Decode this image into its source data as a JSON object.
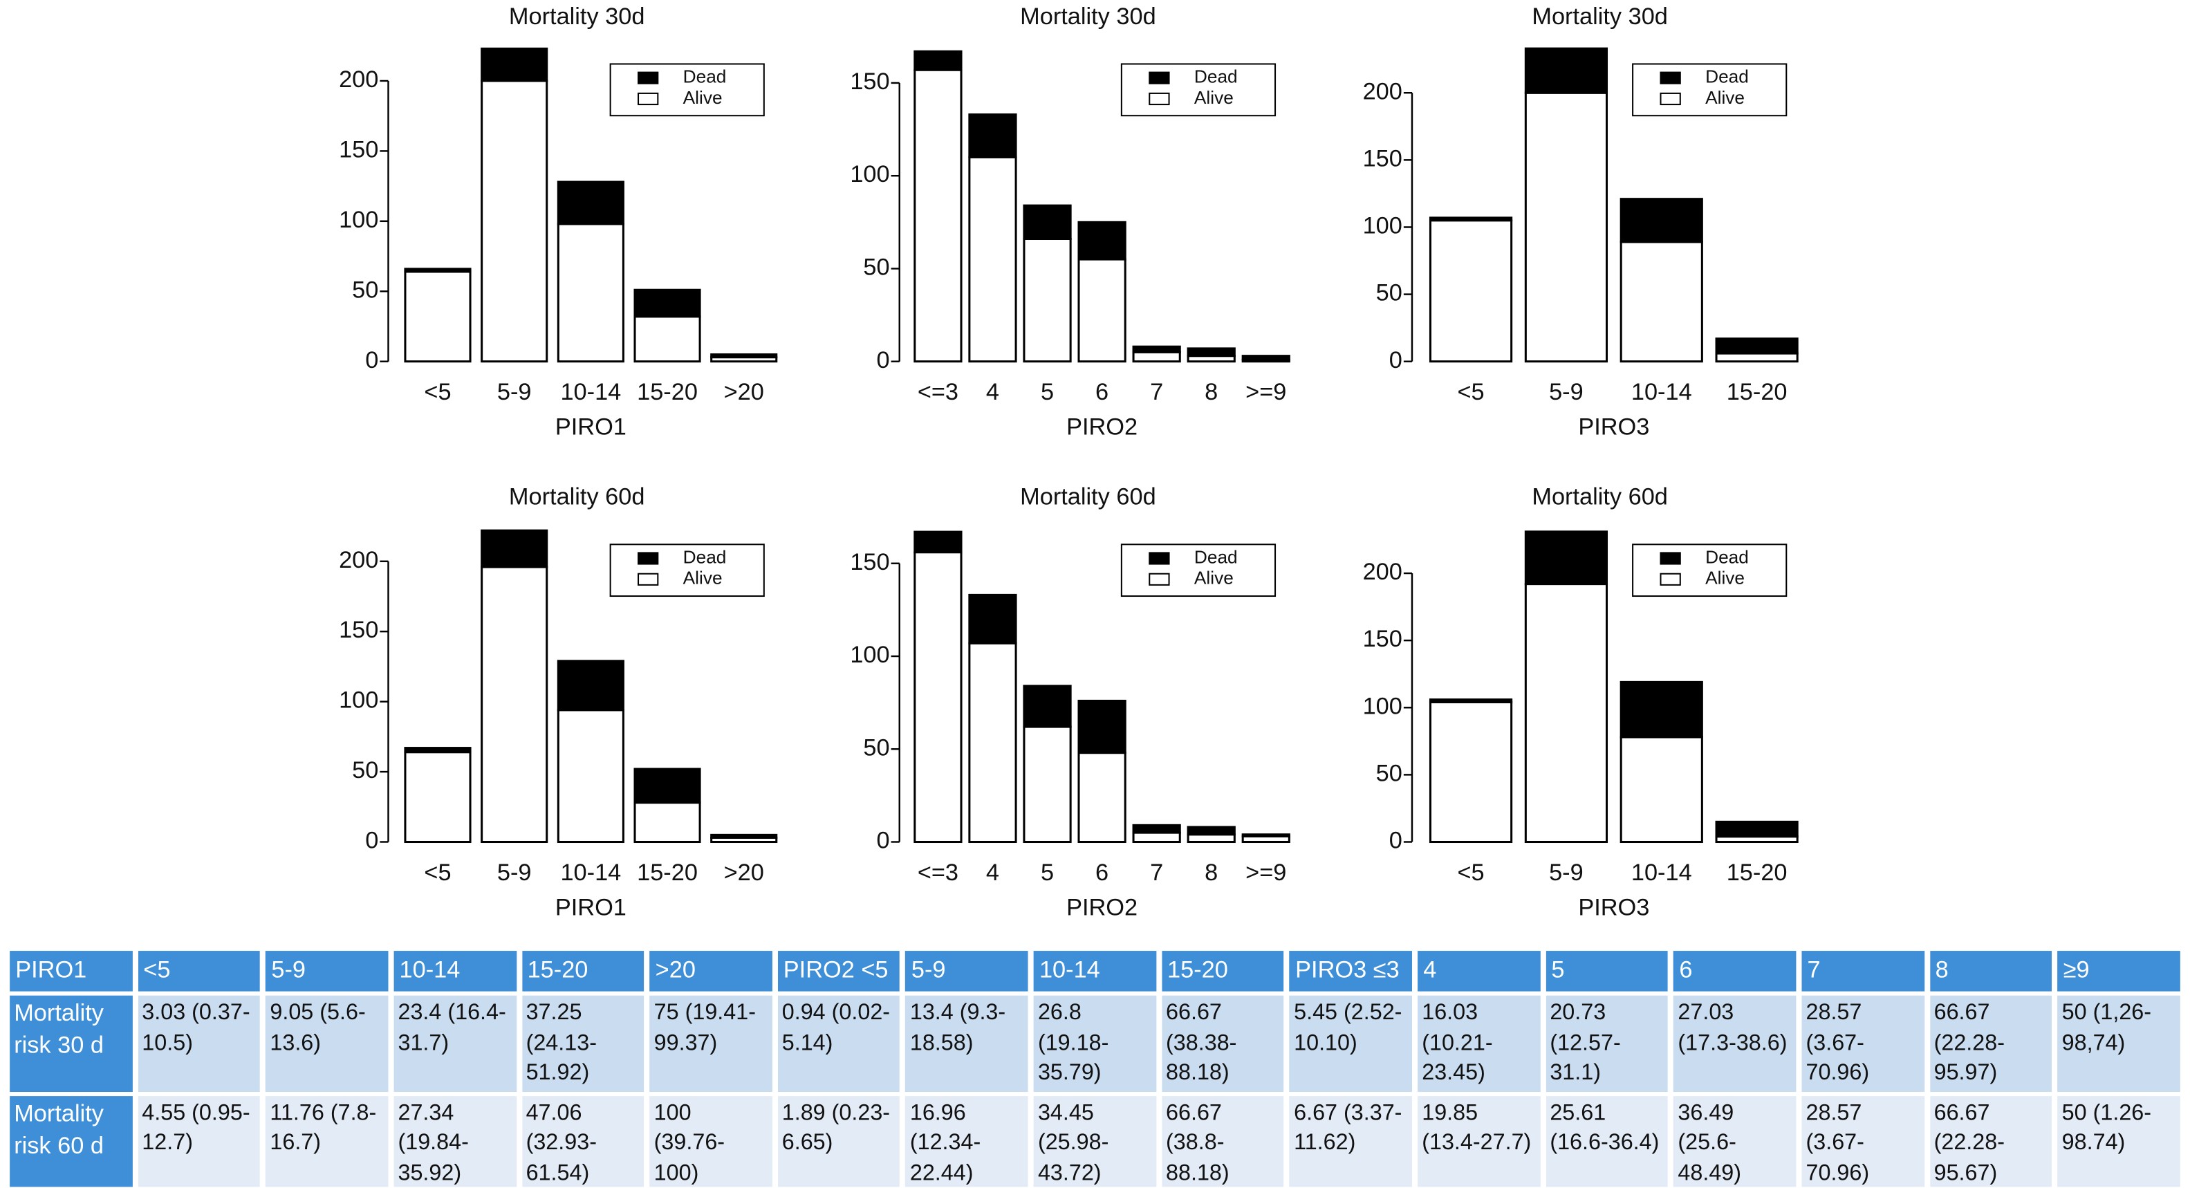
{
  "chart_data": [
    {
      "type": "bar",
      "stacked": true,
      "title": "Mortality 30d",
      "xlabel": "PIRO1",
      "categories": [
        "<5",
        "5-9",
        "10-14",
        "15-20",
        ">20"
      ],
      "series": [
        {
          "name": "Alive",
          "color": "#ffffff",
          "values": [
            64,
            200,
            98,
            32,
            3
          ]
        },
        {
          "name": "Dead",
          "color": "#000000",
          "values": [
            2,
            23,
            30,
            19,
            2
          ]
        }
      ],
      "ylim": [
        0,
        225
      ],
      "yticks": [
        0,
        50,
        100,
        150,
        200
      ],
      "legend": "upper right"
    },
    {
      "type": "bar",
      "stacked": true,
      "title": "Mortality 30d",
      "xlabel": "PIRO2",
      "categories": [
        "<=3",
        "4",
        "5",
        "6",
        "7",
        "8",
        ">=9"
      ],
      "series": [
        {
          "name": "Alive",
          "color": "#ffffff",
          "values": [
            157,
            110,
            66,
            55,
            5,
            3,
            1
          ]
        },
        {
          "name": "Dead",
          "color": "#000000",
          "values": [
            10,
            23,
            18,
            20,
            3,
            4,
            2
          ]
        }
      ],
      "ylim": [
        0,
        170
      ],
      "yticks": [
        0,
        50,
        100,
        150
      ],
      "legend": "upper right"
    },
    {
      "type": "bar",
      "stacked": true,
      "title": "Mortality 30d",
      "xlabel": "PIRO3",
      "categories": [
        "<5",
        "5-9",
        "10-14",
        "15-20"
      ],
      "series": [
        {
          "name": "Alive",
          "color": "#ffffff",
          "values": [
            105,
            200,
            89,
            6
          ]
        },
        {
          "name": "Dead",
          "color": "#000000",
          "values": [
            2,
            33,
            32,
            11
          ]
        }
      ],
      "ylim": [
        0,
        235
      ],
      "yticks": [
        0,
        50,
        100,
        150,
        200
      ],
      "legend": "upper right"
    },
    {
      "type": "bar",
      "stacked": true,
      "title": "Mortality 60d",
      "xlabel": "PIRO1",
      "categories": [
        "<5",
        "5-9",
        "10-14",
        "15-20",
        ">20"
      ],
      "series": [
        {
          "name": "Alive",
          "color": "#ffffff",
          "values": [
            64,
            196,
            94,
            28,
            3
          ]
        },
        {
          "name": "Dead",
          "color": "#000000",
          "values": [
            3,
            26,
            35,
            24,
            2
          ]
        }
      ],
      "ylim": [
        0,
        225
      ],
      "yticks": [
        0,
        50,
        100,
        150,
        200
      ],
      "legend": "upper right"
    },
    {
      "type": "bar",
      "stacked": true,
      "title": "Mortality 60d",
      "xlabel": "PIRO2",
      "categories": [
        "<=3",
        "4",
        "5",
        "6",
        "7",
        "8",
        ">=9"
      ],
      "series": [
        {
          "name": "Alive",
          "color": "#ffffff",
          "values": [
            156,
            107,
            62,
            48,
            5,
            4,
            3
          ]
        },
        {
          "name": "Dead",
          "color": "#000000",
          "values": [
            11,
            26,
            22,
            28,
            4,
            4,
            1
          ]
        }
      ],
      "ylim": [
        0,
        170
      ],
      "yticks": [
        0,
        50,
        100,
        150
      ],
      "legend": "upper right"
    },
    {
      "type": "bar",
      "stacked": true,
      "title": "Mortality 60d",
      "xlabel": "PIRO3",
      "categories": [
        "<5",
        "5-9",
        "10-14",
        "15-20"
      ],
      "series": [
        {
          "name": "Alive",
          "color": "#ffffff",
          "values": [
            104,
            192,
            78,
            4
          ]
        },
        {
          "name": "Dead",
          "color": "#000000",
          "values": [
            2,
            39,
            41,
            11
          ]
        }
      ],
      "ylim": [
        0,
        235
      ],
      "yticks": [
        0,
        50,
        100,
        150,
        200
      ],
      "legend": "upper right"
    }
  ],
  "table": {
    "header": [
      "PIRO1",
      "<5",
      "5-9",
      "10-14",
      "15-20",
      ">20",
      "PIRO2 <5",
      "5-9",
      "10-14",
      "15-20",
      "PIRO3 ≤3",
      "4",
      "5",
      "6",
      "7",
      "8",
      "≥9"
    ],
    "rows": [
      [
        "Mortality risk 30 d",
        "3.03 (0.37-10.5)",
        "9.05 (5.6-13.6)",
        "23.4 (16.4-31.7)",
        "37.25 (24.13-51.92)",
        "75 (19.41-99.37)",
        "0.94 (0.02-5.14)",
        "13.4 (9.3-18.58)",
        "26.8 (19.18-35.79)",
        "66.67 (38.38-88.18)",
        "5.45 (2.52-10.10)",
        "16.03 (10.21-23.45)",
        "20.73 (12.57-31.1)",
        "27.03 (17.3-38.6)",
        "28.57 (3.67-70.96)",
        "66.67 (22.28-95.97)",
        "50 (1,26-98,74)"
      ],
      [
        "Mortality risk 60 d",
        "4.55 (0.95-12.7)",
        "11.76 (7.8-16.7)",
        "27.34 (19.84-35.92)",
        "47.06 (32.93-61.54)",
        "100 (39.76-100)",
        "1.89 (0.23-6.65)",
        "16.96 (12.34-22.44)",
        "34.45 (25.98-43.72)",
        "66.67 (38.8-88.18)",
        "6.67 (3.37-11.62)",
        "19.85 (13.4-27.7)",
        "25.61 (16.6-36.4)",
        "36.49 (25.6-48.49)",
        "28.57 (3.67-70.96)",
        "66.67 (22.28-95.67)",
        "50 (1.26-98.74)"
      ]
    ]
  }
}
